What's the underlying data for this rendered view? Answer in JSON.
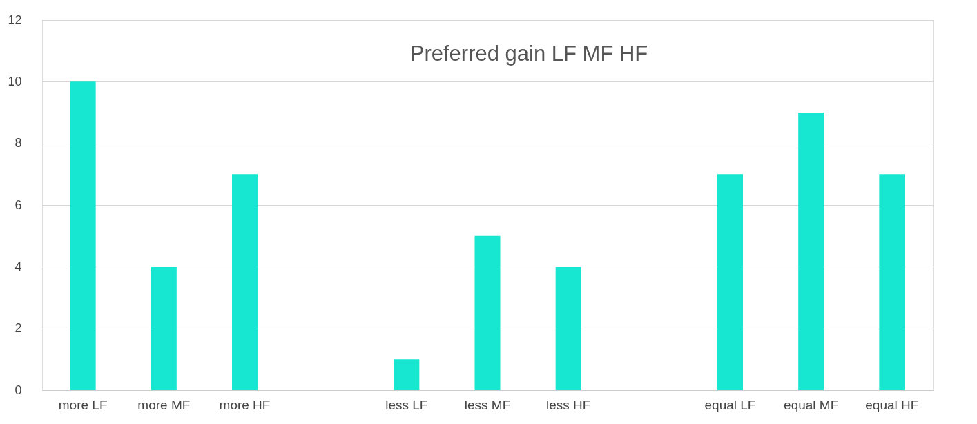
{
  "chart_data": {
    "type": "bar",
    "title": "Preferred gain LF MF HF",
    "categories": [
      "more LF",
      "more MF",
      "more HF",
      null,
      "less  LF",
      "less  MF",
      "less   HF",
      null,
      "equal LF",
      "equal MF",
      "equal HF"
    ],
    "values": [
      10,
      4,
      7,
      null,
      1,
      5,
      4,
      null,
      7,
      9,
      7
    ],
    "color": "#17e6d0",
    "ylim": [
      0,
      12
    ],
    "yticks": [
      0,
      2,
      4,
      6,
      8,
      10,
      12
    ],
    "grid": "y"
  }
}
